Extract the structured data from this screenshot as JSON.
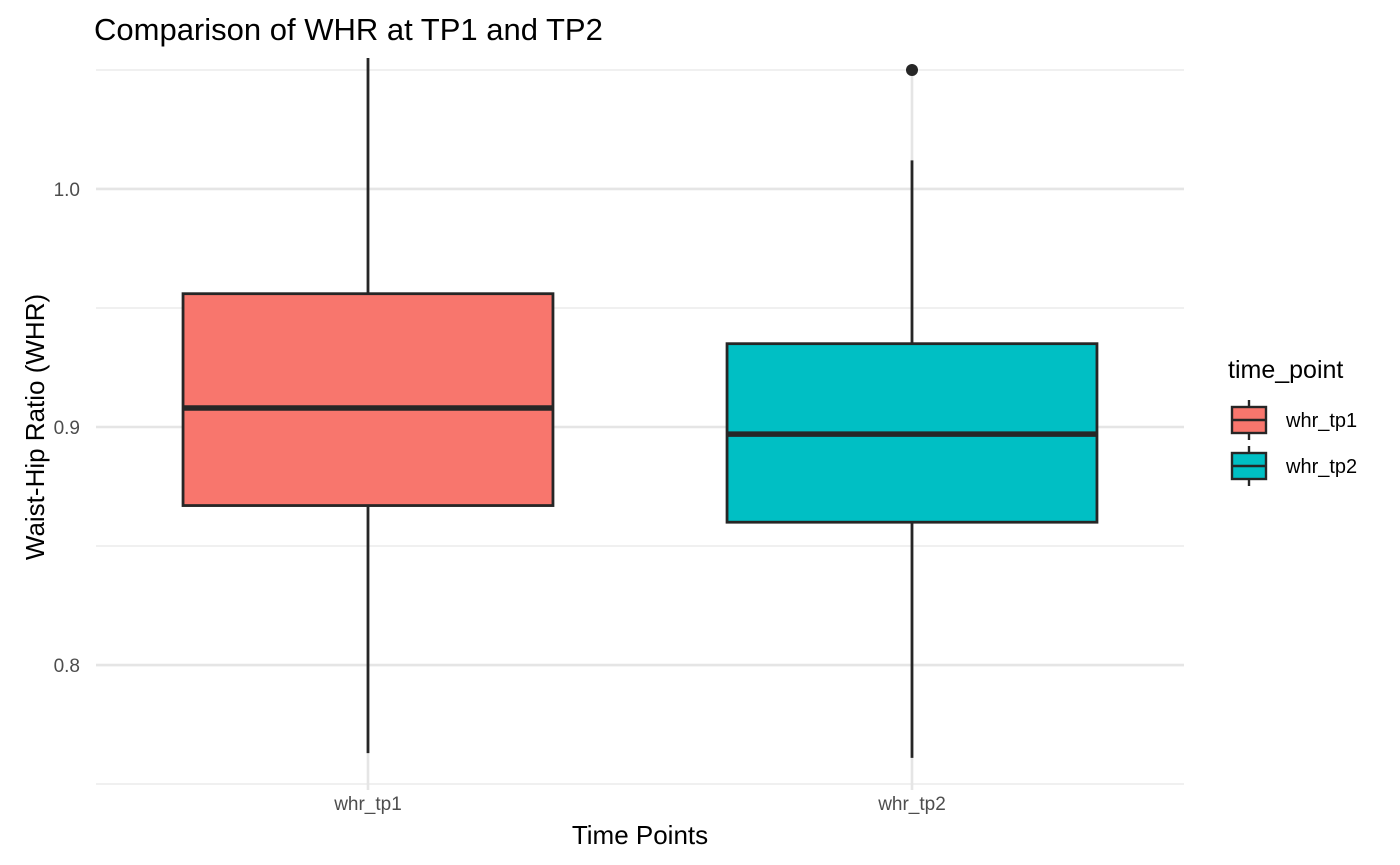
{
  "chart_data": {
    "type": "boxplot",
    "title": "Comparison of WHR at TP1 and TP2",
    "xlabel": "Time Points",
    "ylabel": "Waist-Hip Ratio (WHR)",
    "ylim": [
      0.7475,
      1.0525
    ],
    "y_ticks": [
      0.8,
      0.9,
      1.0
    ],
    "y_tick_labels": [
      "0.8",
      "0.9",
      "1.0"
    ],
    "grid": true,
    "categories": [
      "whr_tp1",
      "whr_tp2"
    ],
    "series": [
      {
        "name": "whr_tp1",
        "color": "#F8766D",
        "whisker_low": 0.763,
        "q1": 0.867,
        "median": 0.908,
        "q3": 0.956,
        "whisker_high": 1.055,
        "outliers": []
      },
      {
        "name": "whr_tp2",
        "color": "#00BFC4",
        "whisker_low": 0.761,
        "q1": 0.86,
        "median": 0.897,
        "q3": 0.935,
        "whisker_high": 1.012,
        "outliers": [
          1.05
        ]
      }
    ],
    "legend": {
      "title": "time_point",
      "position": "right"
    }
  }
}
